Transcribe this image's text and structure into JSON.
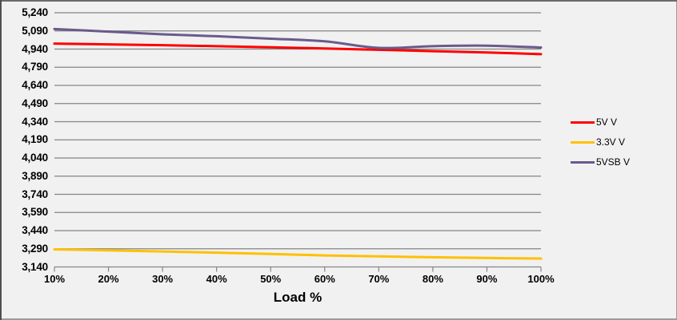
{
  "chart_data": {
    "type": "line",
    "title": "",
    "xlabel": "Load %",
    "ylabel": "",
    "categories": [
      "10%",
      "20%",
      "30%",
      "40%",
      "50%",
      "60%",
      "70%",
      "80%",
      "90%",
      "100%"
    ],
    "ylim": [
      3140,
      5240
    ],
    "y_tick_step": 150,
    "y_tick_labels": [
      "3,140",
      "3,290",
      "3,440",
      "3,590",
      "3,740",
      "3,890",
      "4,040",
      "4,190",
      "4,340",
      "4,490",
      "4,640",
      "4,790",
      "4,940",
      "5,090",
      "5,240"
    ],
    "grid": "horizontal gridlines on",
    "legend_position": "right",
    "line_style": "smoothed, no markers",
    "series": [
      {
        "name": "5V V",
        "color": "#FE0000",
        "values": [
          4985,
          4979,
          4972,
          4964,
          4955,
          4945,
          4934,
          4923,
          4912,
          4898
        ]
      },
      {
        "name": "3.3V V",
        "color": "#FFC000",
        "values": [
          3285,
          3277,
          3268,
          3258,
          3247,
          3235,
          3227,
          3220,
          3214,
          3209
        ]
      },
      {
        "name": "5VSB V",
        "color": "#6A5A8C",
        "values": [
          5106,
          5084,
          5062,
          5046,
          5026,
          5004,
          4950,
          4964,
          4968,
          4953
        ]
      }
    ]
  },
  "styles": {
    "background": "#F1F1F1",
    "gridline_color": "#858585",
    "axis_color": "#858585",
    "text_color": "#000000"
  }
}
